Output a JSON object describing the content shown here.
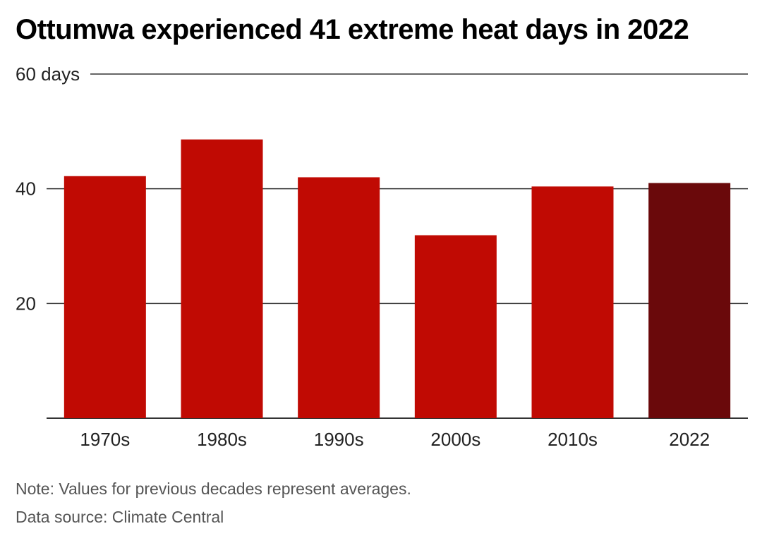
{
  "title": "Ottumwa experienced 41 extreme heat days in 2022",
  "note": "Note: Values for previous decades represent averages.",
  "source": "Data source: Climate Central",
  "colors": {
    "bar": "#c00a03",
    "highlight_bar": "#6a090b",
    "grid": "#333333",
    "text": "#222222"
  },
  "chart_data": {
    "type": "bar",
    "categories": [
      "1970s",
      "1980s",
      "1990s",
      "2000s",
      "2010s",
      "2022"
    ],
    "values": [
      42.2,
      48.6,
      42.0,
      31.9,
      40.4,
      41
    ],
    "highlight_index": 5,
    "ylim": [
      0,
      60
    ],
    "yticks": [
      20,
      40,
      60
    ],
    "ytick_labels": [
      "20",
      "40",
      "60 days"
    ],
    "xlabel": "",
    "ylabel": "",
    "grid": true
  }
}
